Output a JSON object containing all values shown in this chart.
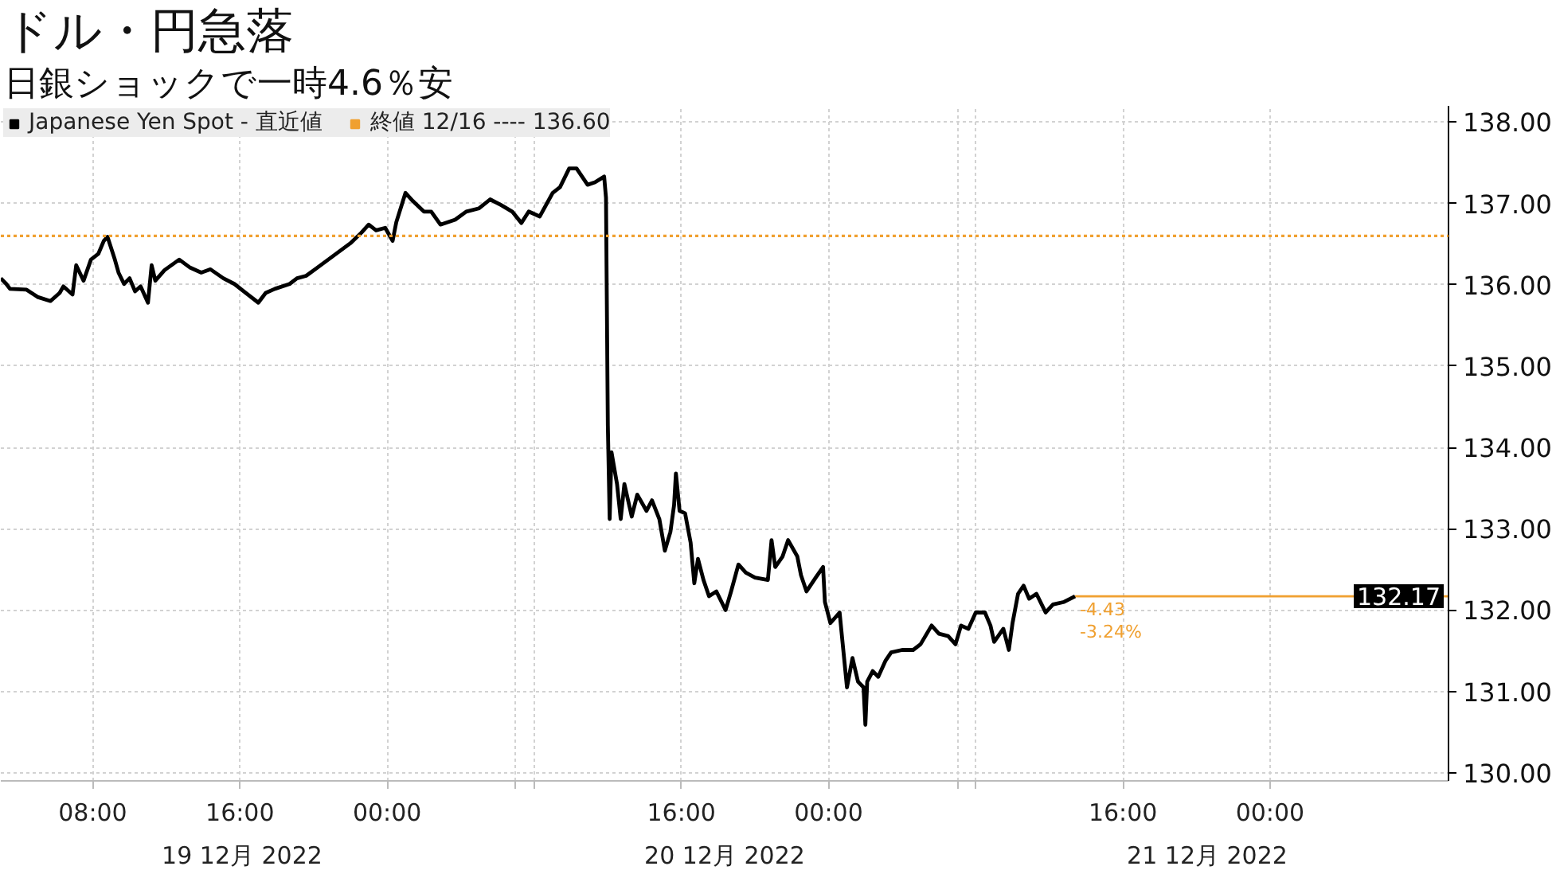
{
  "chart_data": {
    "type": "line",
    "title": "ドル・円急落",
    "subtitle": "日銀ショックで一時4.6％安",
    "xlim": [
      "2022-12-19T03:00",
      "2022-12-22T09:42"
    ],
    "xticks": [
      {
        "value": "2022-12-19T08:00",
        "label": "08:00"
      },
      {
        "value": "2022-12-19T16:00",
        "label": "16:00"
      },
      {
        "value": "2022-12-20T00:00",
        "label": "00:00"
      },
      {
        "value": "2022-12-20T07:00",
        "label": null
      },
      {
        "value": "2022-12-20T08:00",
        "label": null
      },
      {
        "value": "2022-12-20T16:00",
        "label": "16:00"
      },
      {
        "value": "2022-12-21T00:00",
        "label": "00:00"
      },
      {
        "value": "2022-12-21T07:00",
        "label": null
      },
      {
        "value": "2022-12-21T08:00",
        "label": null
      },
      {
        "value": "2022-12-21T16:00",
        "label": "16:00"
      },
      {
        "value": "2022-12-22T00:00",
        "label": "00:00"
      }
    ],
    "ylim": [
      129.9,
      138.2
    ],
    "yticks": [
      {
        "value": 130,
        "label": "130.00"
      },
      {
        "value": 131,
        "label": "131.00"
      },
      {
        "value": 132,
        "label": "132.00"
      },
      {
        "value": 133,
        "label": "133.00"
      },
      {
        "value": 134,
        "label": "134.00"
      },
      {
        "value": 135,
        "label": "135.00"
      },
      {
        "value": 136,
        "label": "136.00"
      },
      {
        "value": 137,
        "label": "137.00"
      },
      {
        "value": 138,
        "label": "138.00"
      }
    ],
    "series": [
      {
        "name": "Japanese Yen Spot - 直近値",
        "color": "#000000",
        "x": [
          "2022-12-19T03:00",
          "2022-12-19T03:18",
          "2022-12-19T03:30",
          "2022-12-19T04:24",
          "2022-12-19T05:00",
          "2022-12-19T05:42",
          "2022-12-19T06:12",
          "2022-12-19T06:24",
          "2022-12-19T06:54",
          "2022-12-19T07:06",
          "2022-12-19T07:30",
          "2022-12-19T07:54",
          "2022-12-19T08:18",
          "2022-12-19T08:36",
          "2022-12-19T08:48",
          "2022-12-19T09:12",
          "2022-12-19T09:24",
          "2022-12-19T09:42",
          "2022-12-19T10:00",
          "2022-12-19T10:18",
          "2022-12-19T10:36",
          "2022-12-19T11:00",
          "2022-12-19T11:12",
          "2022-12-19T11:24",
          "2022-12-19T11:54",
          "2022-12-19T12:42",
          "2022-12-19T13:18",
          "2022-12-19T13:54",
          "2022-12-19T14:24",
          "2022-12-19T15:06",
          "2022-12-19T15:42",
          "2022-12-19T16:12",
          "2022-12-19T17:00",
          "2022-12-19T17:24",
          "2022-12-19T17:54",
          "2022-12-19T18:42",
          "2022-12-19T19:06",
          "2022-12-19T19:36",
          "2022-12-19T20:12",
          "2022-12-19T20:48",
          "2022-12-19T21:24",
          "2022-12-19T22:00",
          "2022-12-19T22:36",
          "2022-12-19T23:00",
          "2022-12-19T23:24",
          "2022-12-19T23:54",
          "2022-12-20T00:18",
          "2022-12-20T00:30",
          "2022-12-20T01:00",
          "2022-12-20T01:24",
          "2022-12-20T02:00",
          "2022-12-20T02:24",
          "2022-12-20T02:54",
          "2022-12-20T03:42",
          "2022-12-20T04:18",
          "2022-12-20T05:00",
          "2022-12-20T05:36",
          "2022-12-20T06:12",
          "2022-12-20T06:48",
          "2022-12-20T07:18",
          "2022-12-20T07:42",
          "2022-12-20T08:18",
          "2022-12-20T09:00",
          "2022-12-20T09:24",
          "2022-12-20T09:54",
          "2022-12-20T10:18",
          "2022-12-20T10:36",
          "2022-12-20T10:54",
          "2022-12-20T11:18",
          "2022-12-20T11:48",
          "2022-12-20T11:54",
          "2022-12-20T12:00",
          "2022-12-20T12:06",
          "2022-12-20T12:12",
          "2022-12-20T12:30",
          "2022-12-20T12:42",
          "2022-12-20T12:54",
          "2022-12-20T13:18",
          "2022-12-20T13:36",
          "2022-12-20T14:06",
          "2022-12-20T14:24",
          "2022-12-20T14:48",
          "2022-12-20T15:06",
          "2022-12-20T15:24",
          "2022-12-20T15:36",
          "2022-12-20T15:42",
          "2022-12-20T15:54",
          "2022-12-20T16:12",
          "2022-12-20T16:30",
          "2022-12-20T16:42",
          "2022-12-20T16:54",
          "2022-12-20T17:12",
          "2022-12-20T17:30",
          "2022-12-20T17:54",
          "2022-12-20T18:24",
          "2022-12-20T18:42",
          "2022-12-20T19:06",
          "2022-12-20T19:30",
          "2022-12-20T20:00",
          "2022-12-20T20:42",
          "2022-12-20T20:54",
          "2022-12-20T21:06",
          "2022-12-20T21:30",
          "2022-12-20T21:48",
          "2022-12-20T22:18",
          "2022-12-20T22:30",
          "2022-12-20T22:48",
          "2022-12-20T23:18",
          "2022-12-20T23:42",
          "2022-12-20T23:48",
          "2022-12-21T00:06",
          "2022-12-21T00:36",
          "2022-12-21T00:48",
          "2022-12-21T01:00",
          "2022-12-21T01:18",
          "2022-12-21T01:36",
          "2022-12-21T01:54",
          "2022-12-21T02:00",
          "2022-12-21T02:06",
          "2022-12-21T02:24",
          "2022-12-21T02:42",
          "2022-12-21T03:06",
          "2022-12-21T03:24",
          "2022-12-21T04:00",
          "2022-12-21T04:36",
          "2022-12-21T05:00",
          "2022-12-21T05:36",
          "2022-12-21T06:00",
          "2022-12-21T06:30",
          "2022-12-21T06:54",
          "2022-12-21T07:12",
          "2022-12-21T07:36",
          "2022-12-21T08:00",
          "2022-12-21T08:30",
          "2022-12-21T08:48",
          "2022-12-21T09:00",
          "2022-12-21T09:30",
          "2022-12-21T09:48",
          "2022-12-21T10:00",
          "2022-12-21T10:18",
          "2022-12-21T10:36",
          "2022-12-21T10:54",
          "2022-12-21T11:18",
          "2022-12-21T11:48",
          "2022-12-21T12:12",
          "2022-12-21T12:48",
          "2022-12-21T13:24"
        ],
        "values": [
          136.08,
          136.01,
          135.95,
          135.94,
          135.85,
          135.8,
          135.9,
          135.98,
          135.88,
          136.24,
          136.05,
          136.31,
          136.38,
          136.54,
          136.59,
          136.31,
          136.15,
          136.01,
          136.08,
          135.92,
          135.98,
          135.78,
          136.24,
          136.05,
          136.18,
          136.31,
          136.21,
          136.15,
          136.19,
          136.08,
          136.01,
          135.92,
          135.78,
          135.9,
          135.95,
          136.01,
          136.08,
          136.11,
          136.21,
          136.31,
          136.41,
          136.51,
          136.64,
          136.74,
          136.67,
          136.7,
          136.54,
          136.77,
          137.13,
          137.03,
          136.9,
          136.9,
          136.74,
          136.8,
          136.9,
          136.94,
          137.05,
          136.98,
          136.9,
          136.76,
          136.9,
          136.84,
          137.13,
          137.2,
          137.43,
          137.43,
          137.33,
          137.23,
          137.26,
          137.33,
          137.07,
          134.27,
          133.12,
          133.94,
          133.55,
          133.12,
          133.55,
          133.15,
          133.42,
          133.22,
          133.35,
          133.12,
          132.73,
          132.96,
          133.29,
          133.68,
          133.22,
          133.19,
          132.83,
          132.33,
          132.63,
          132.37,
          132.17,
          132.23,
          132.0,
          132.23,
          132.56,
          132.46,
          132.4,
          132.37,
          132.86,
          132.53,
          132.66,
          132.86,
          132.66,
          132.43,
          132.23,
          132.4,
          132.53,
          132.1,
          131.84,
          131.97,
          131.51,
          131.05,
          131.41,
          131.12,
          131.05,
          130.59,
          131.12,
          131.25,
          131.18,
          131.38,
          131.48,
          131.51,
          131.51,
          131.58,
          131.81,
          131.71,
          131.68,
          131.58,
          131.81,
          131.77,
          131.97,
          131.97,
          131.81,
          131.61,
          131.77,
          131.51,
          131.84,
          132.2,
          132.3,
          132.14,
          132.2,
          131.97,
          132.07,
          132.1,
          132.17
        ]
      }
    ],
    "ref_lines": [
      {
        "axis": "y",
        "value": 136.6,
        "label": "終値 12/16 ---- 136.60",
        "color": "#f0a030",
        "line_style": "dotted"
      },
      {
        "axis": "y",
        "value": 132.17,
        "label": "132.17",
        "color": "#f0a030",
        "line_style": "solid"
      }
    ],
    "annotations": [
      {
        "text": "-4.43",
        "x": "2022-12-21T13:24",
        "y": 132.17
      },
      {
        "text": "-3.24%",
        "x": "2022-12-21T13:24",
        "y": 132.17
      },
      "19 12月 2022",
      "20 12月 2022",
      "21 12月 2022"
    ],
    "grid": true,
    "legend": "top left"
  }
}
